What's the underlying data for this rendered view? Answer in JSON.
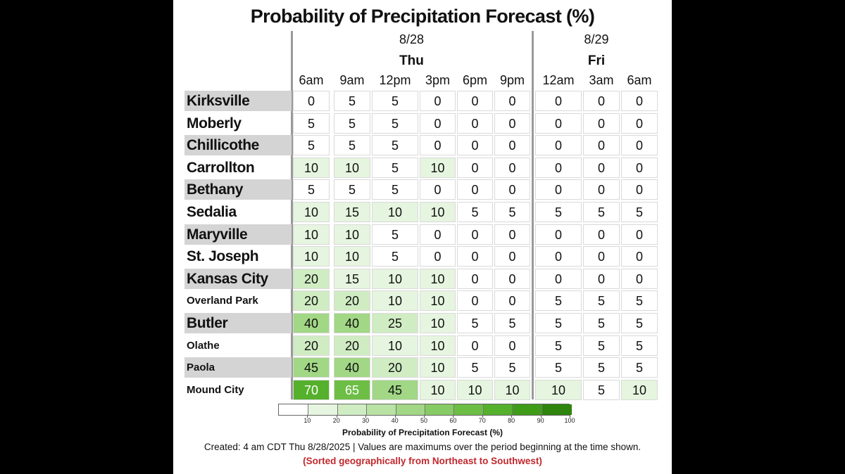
{
  "title": "Probability of Precipitation Forecast (%)",
  "chart_data": {
    "type": "table",
    "title": "Probability of Precipitation Forecast (%)",
    "day_groups": [
      {
        "date": "8/28",
        "day": "Thu",
        "times": [
          "6am",
          "9am",
          "12pm",
          "3pm",
          "6pm",
          "9pm"
        ]
      },
      {
        "date": "8/29",
        "day": "Fri",
        "times": [
          "12am",
          "3am",
          "6am"
        ]
      }
    ],
    "columns": [
      "6am",
      "9am",
      "12pm",
      "3pm",
      "6pm",
      "9pm",
      "12am",
      "3am",
      "6am"
    ],
    "rows": [
      {
        "city": "Kirksville",
        "values": [
          0,
          5,
          5,
          0,
          0,
          0,
          0,
          0,
          0
        ]
      },
      {
        "city": "Moberly",
        "values": [
          5,
          5,
          5,
          0,
          0,
          0,
          0,
          0,
          0
        ]
      },
      {
        "city": "Chillicothe",
        "values": [
          5,
          5,
          5,
          0,
          0,
          0,
          0,
          0,
          0
        ]
      },
      {
        "city": "Carrollton",
        "values": [
          10,
          10,
          5,
          10,
          0,
          0,
          0,
          0,
          0
        ]
      },
      {
        "city": "Bethany",
        "values": [
          5,
          5,
          5,
          0,
          0,
          0,
          0,
          0,
          0
        ]
      },
      {
        "city": "Sedalia",
        "values": [
          10,
          15,
          10,
          10,
          5,
          5,
          5,
          5,
          5
        ]
      },
      {
        "city": "Maryville",
        "values": [
          10,
          10,
          5,
          0,
          0,
          0,
          0,
          0,
          0
        ]
      },
      {
        "city": "St. Joseph",
        "values": [
          10,
          10,
          5,
          0,
          0,
          0,
          0,
          0,
          0
        ]
      },
      {
        "city": "Kansas City",
        "values": [
          20,
          15,
          10,
          10,
          0,
          0,
          0,
          0,
          0
        ]
      },
      {
        "city": "Overland Park",
        "values": [
          20,
          20,
          10,
          10,
          0,
          0,
          5,
          5,
          5
        ]
      },
      {
        "city": "Butler",
        "values": [
          40,
          40,
          25,
          10,
          5,
          5,
          5,
          5,
          5
        ]
      },
      {
        "city": "Olathe",
        "values": [
          20,
          20,
          10,
          10,
          0,
          0,
          5,
          5,
          5
        ]
      },
      {
        "city": "Paola",
        "values": [
          45,
          40,
          20,
          10,
          5,
          5,
          5,
          5,
          5
        ]
      },
      {
        "city": "Mound City",
        "values": [
          70,
          65,
          45,
          10,
          10,
          10,
          10,
          5,
          10
        ]
      }
    ],
    "legend": {
      "title": "Probability of Precipitation Forecast (%)",
      "ticks": [
        10,
        20,
        30,
        40,
        50,
        60,
        70,
        80,
        90,
        100
      ],
      "colors": [
        "#ffffff",
        "#e6f5df",
        "#d0ecc3",
        "#b9e2a5",
        "#a1d785",
        "#87cb64",
        "#6dbe45",
        "#55b02c",
        "#3f9c18",
        "#2e840c"
      ]
    }
  },
  "footer": "Created: 4 am CDT Thu 8/28/2025  |  Values are maximums over the period beginning at the time shown.",
  "note": "(Sorted geographically from Northeast to Southwest)"
}
